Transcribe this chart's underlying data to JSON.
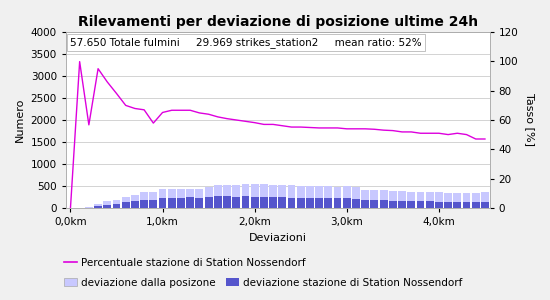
{
  "title": "Rilevamenti per deviazione di posizione ultime 24h",
  "annotation": "57.650 Totale fulmini     29.969 strikes_station2     mean ratio: 52%",
  "xlabel": "Deviazioni",
  "ylabel_left": "Numero",
  "ylabel_right": "Tasso [%]",
  "ylim_left": [
    0,
    4000
  ],
  "ylim_right": [
    0,
    120
  ],
  "yticks_left": [
    0,
    500,
    1000,
    1500,
    2000,
    2500,
    3000,
    3500,
    4000
  ],
  "yticks_right": [
    0,
    20,
    40,
    60,
    80,
    100,
    120
  ],
  "xtick_labels": [
    "0,0km",
    "1,0km",
    "2,0km",
    "3,0km",
    "4,0km"
  ],
  "xtick_positions": [
    0,
    10,
    20,
    30,
    40
  ],
  "n_bars": 46,
  "bar_total": [
    5,
    15,
    40,
    90,
    160,
    200,
    260,
    310,
    360,
    380,
    430,
    440,
    440,
    445,
    435,
    490,
    520,
    535,
    540,
    555,
    545,
    550,
    535,
    535,
    520,
    515,
    510,
    505,
    505,
    495,
    500,
    490,
    425,
    420,
    415,
    400,
    390,
    380,
    375,
    370,
    360,
    355,
    350,
    345,
    350,
    360
  ],
  "bar_station": [
    2,
    8,
    20,
    45,
    80,
    105,
    135,
    175,
    195,
    185,
    240,
    245,
    245,
    250,
    235,
    260,
    270,
    270,
    265,
    270,
    265,
    260,
    255,
    250,
    240,
    235,
    235,
    235,
    230,
    225,
    225,
    220,
    190,
    190,
    186,
    176,
    171,
    166,
    162,
    159,
    154,
    151,
    149,
    144,
    139,
    146
  ],
  "line_pct_left_scale": [
    0,
    3320,
    1890,
    3160,
    2860,
    2600,
    2330,
    2260,
    2230,
    1930,
    2170,
    2220,
    2220,
    2220,
    2160,
    2130,
    2070,
    2030,
    2000,
    1970,
    1940,
    1900,
    1900,
    1870,
    1840,
    1840,
    1830,
    1820,
    1820,
    1820,
    1800,
    1800,
    1800,
    1790,
    1770,
    1760,
    1730,
    1730,
    1700,
    1700,
    1700,
    1670,
    1700,
    1670,
    1570,
    1570
  ],
  "color_total": "#c8c8ff",
  "color_station": "#5555cc",
  "color_line": "#dd00dd",
  "background_fig": "#f0f0f0",
  "background_ax": "#ffffff",
  "grid_color": "#cccccc",
  "title_fontsize": 10,
  "label_fontsize": 8,
  "tick_fontsize": 7.5,
  "legend_fontsize": 7.5,
  "annotation_fontsize": 7.5
}
